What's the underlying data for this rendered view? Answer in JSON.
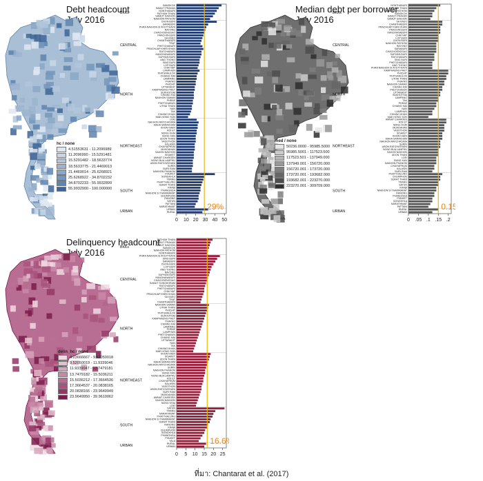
{
  "source_caption": "ที่มา: Chantarat et al. (2017)",
  "panels": [
    {
      "id": "debt",
      "title_line1": "Debt headcount",
      "title_line2": "July 2016",
      "legend_title": "hc / none",
      "legend_colors": [
        "#dfe8f1",
        "#c8d7e6",
        "#b2c6da",
        "#9cb4cf",
        "#8aa7c6",
        "#7597bb",
        "#5f84ad",
        "#3e6596"
      ],
      "legend_items": [
        "4.51553631 - 11.2096989",
        "11.2096990 - 15.5291481",
        "15.5291482 - 18.5633774",
        "18.5633775 - 21.4469013",
        "21.4469014 - 25.6268921",
        "25.6268922 - 34.8702232",
        "34.8702233 - 55.9932899",
        "55.9932900 - 100.000000"
      ],
      "annotation": "29%",
      "annotation_color": "#e58a1f",
      "bar_color": "#1f3b73",
      "ref_line_color": "#f0b400",
      "map_base_color": "#a9bfd6"
    },
    {
      "id": "median",
      "title_line1": "Median debt per borrower",
      "title_line2": "July 2016",
      "legend_title": "med / none",
      "legend_colors": [
        "#e6e6e6",
        "#cccccc",
        "#b3b3b3",
        "#999999",
        "#7f7f7f",
        "#666666",
        "#4d4d4d",
        "#2e2e2e"
      ],
      "legend_items": [
        "50236.0000 - 95985.5000",
        "95985.5001 - 117523.500",
        "117523.501 - 137949.000",
        "137949.001 - 156720.000",
        "156720.001 - 173720.000",
        "173720.001 - 193682.000",
        "193682.001 - 223270.000",
        "223270.001 - 309709.000"
      ],
      "annotation": "0.15",
      "annotation_color": "#e58a1f",
      "bar_color": "#555555",
      "ref_line_color": "#f0b400",
      "map_base_color": "#6f6f6f"
    },
    {
      "id": "delin",
      "title_line1": "Delinquency headcount",
      "title_line2": "July 2016",
      "legend_title": "delin_hc / none",
      "legend_colors": [
        "#f1d9e3",
        "#e4bfd0",
        "#d6a4bc",
        "#c889a8",
        "#b86e92",
        "#a8537d",
        "#933865",
        "#7a1c4b"
      ],
      "legend_items": [
        "4.23666667 - 9.52050018",
        "9.52050019 - 11.9339046",
        "11.9339047 - 13.7479181",
        "13.7479182 - 15.5036211",
        "15.5036212 - 17.3664536",
        "17.3664537 - 20.0838165",
        "20.0838166 - 23.9649949",
        "23.9649950 - 39.9610062"
      ],
      "annotation": "16.6%",
      "annotation_color": "#e58a1f",
      "bar_color": "#9b1b3a",
      "ref_line_color": "#f0b400",
      "map_base_color": "#b86e92"
    }
  ],
  "chart_data": [
    {
      "type": "bar",
      "orientation": "horizontal",
      "panel": "debt",
      "title": "Debt headcount",
      "subtitle": "July 2016",
      "groups": [
        "BKKs",
        "CENTRAL",
        "NORTH",
        "NORTHEAST",
        "SOUTH",
        "URBAN"
      ],
      "group_sizes": [
        6,
        18,
        18,
        20,
        13,
        2
      ],
      "categories": [
        "BANGKOK",
        "SAMUT PRAKAN",
        "NONTHABURI",
        "PATHUM THANI",
        "SAMUT SAKHON",
        "NAKHON PATHOM",
        "CHON BURI",
        "SARABURI",
        "PHRA NAKHON SI AYUTTHAYA",
        "RAYONG",
        "CHACHOENGSAO",
        "PRACHIN BURI",
        "SA KAEO",
        "CHANTHABURI",
        "TRAT",
        "PHETCHABURI",
        "PRACHUAP KHIRI KHAN",
        "RATCHABURI",
        "KANCHANABURI",
        "SUPHAN BURI",
        "ANG THONG",
        "SING BURI",
        "LOP BURI",
        "CHAI NAT",
        "LAMPHUN",
        "PHITSANULOK",
        "CHIANG MAI",
        "LAMPANG",
        "PHAYAO",
        "PHICHIT",
        "UTTARADIT",
        "KAMPHAENG PHET",
        "SUKHOTHAI",
        "CHIANG RAI",
        "NAKHON SAWAN",
        "PHRAE",
        "PHETCHABUN",
        "UTHAI THANI",
        "NAN",
        "TAK",
        "CHIANG KHAN",
        "MAE HONG SON",
        "LOEI",
        "NAKHON RATCHASIMA",
        "MAHA SARAKHAM",
        "KHON KAEN",
        "ROI ET",
        "NONG KHAI",
        "BUNG KAN",
        "UDON THANI",
        "YASOTHON",
        "KALASIN",
        "CHAIYAPHUM",
        "MUKDAHAN",
        "SAKON NAKHON",
        "SISAKET",
        "AMNAT CHAROEN",
        "NONG BUA LAMPHU",
        "UBON RATCHATHANI",
        "SURIN",
        "BURI RAM",
        "NAKHON PHANOM",
        "PHUKET",
        "SONGKHLA",
        "TRANG",
        "PHATTHALUNG",
        "SURAT THANI",
        "KRABI",
        "PHANGNGA",
        "NAKHON SI THAMMARAT",
        "CHUMPHON",
        "RANONG",
        "SATUN",
        "PATTANI",
        "NARATHIWAT",
        "URBAN",
        "RURAL"
      ],
      "values": [
        47,
        44,
        42,
        40,
        38,
        35,
        42,
        33,
        31,
        30,
        29,
        28,
        27,
        26,
        25,
        27,
        28,
        26,
        26,
        25,
        24,
        24,
        23,
        22,
        24,
        22,
        21,
        21,
        20,
        20,
        19,
        19,
        18,
        18,
        18,
        17,
        17,
        16,
        16,
        15,
        14,
        12,
        21,
        23,
        22,
        22,
        21,
        21,
        20,
        20,
        20,
        19,
        19,
        19,
        18,
        18,
        18,
        17,
        17,
        17,
        16,
        16,
        40,
        29,
        28,
        27,
        26,
        25,
        25,
        24,
        23,
        23,
        22,
        20,
        19,
        33,
        27
      ],
      "x_ticks": [
        0,
        10,
        20,
        30,
        40,
        50
      ],
      "xlim": [
        0,
        52
      ],
      "reference_line": 29
    },
    {
      "type": "bar",
      "orientation": "horizontal",
      "panel": "median",
      "title": "Median debt per borrower",
      "subtitle": "July 2016",
      "groups": [
        "BKKs",
        "CENTRAL",
        "NORTH",
        "NORTHEAST",
        "SOUTH",
        "URBAN"
      ],
      "group_sizes": [
        6,
        18,
        18,
        20,
        13,
        2
      ],
      "categories": [
        "NONTHABURI",
        "PATHUM THANI",
        "NAKHON PATHOM",
        "BANGKOK",
        "SAMUT PRAKAN",
        "SAMUT SAKHON",
        "SA KAEO",
        "CHANTHABURI",
        "PRACHUAP KHIRI KHAN",
        "PRACHIN BURI",
        "KANCHANABURI",
        "CHAI NAT",
        "LOP BURI",
        "CHON BURI",
        "NAKHON PATHOM",
        "RAYONG",
        "SARABURI",
        "CHACHOENGSAO",
        "SUPHAN BURI",
        "RATCHABURI",
        "SING BURI",
        "PHETCHABURI",
        "ANG THONG",
        "PHRA NAKHON SI AYUTTHAYA",
        "KAMPHAENG PHET",
        "PHICHIT",
        "PHITSANULOK",
        "UTHAI THANI",
        "PHAYAO",
        "NAKHON SAWAN",
        "CHIANG RAI",
        "PHETCHABUN",
        "UTTARADIT",
        "SUKHOTHAI",
        "LAMPANG",
        "TAK",
        "PHRAE",
        "CHIANG MAI",
        "NAN",
        "LAMPHUN",
        "CHIANG KHAN",
        "MAE HONG SON",
        "AMNAT CHAROEN",
        "ROI ET",
        "NONG KHAI",
        "MUKDAHAN",
        "YASOTHON",
        "SISAKET",
        "KHON KAEN",
        "MAHA SARAKHAM",
        "NAKHON RATCHASIMA",
        "SURIN",
        "UBON RATCHATHANI",
        "NONG BUA LAMPHU",
        "SAKON NAKHON",
        "UDON THANI",
        "LOEI",
        "BUNG KAN",
        "NAKHON PHANOM",
        "CHAIYAPHUM",
        "KALASIN",
        "BURI RAM",
        "PHATTHALUNG",
        "CHUMPHON",
        "SURAT THANI",
        "TRANG",
        "SATUN",
        "KRABI",
        "NAKHON SI THAMMARAT",
        "RANONG",
        "PHANGNGA",
        "PHUKET",
        "SONGKHLA",
        "NARATHIWAT",
        "PATTANI",
        "RURAL",
        "URBAN"
      ],
      "values": [
        0.16,
        0.14,
        0.13,
        0.12,
        0.12,
        0.11,
        0.17,
        0.17,
        0.16,
        0.16,
        0.16,
        0.15,
        0.15,
        0.15,
        0.14,
        0.14,
        0.14,
        0.14,
        0.13,
        0.13,
        0.13,
        0.12,
        0.12,
        0.12,
        0.2,
        0.2,
        0.19,
        0.19,
        0.18,
        0.18,
        0.17,
        0.17,
        0.16,
        0.16,
        0.15,
        0.15,
        0.14,
        0.14,
        0.13,
        0.12,
        0.12,
        0.1,
        0.19,
        0.19,
        0.18,
        0.18,
        0.18,
        0.17,
        0.17,
        0.17,
        0.16,
        0.16,
        0.16,
        0.15,
        0.15,
        0.15,
        0.14,
        0.14,
        0.14,
        0.13,
        0.13,
        0.12,
        0.17,
        0.16,
        0.16,
        0.15,
        0.15,
        0.14,
        0.14,
        0.13,
        0.13,
        0.12,
        0.12,
        0.11,
        0.1,
        0.15,
        0.12
      ],
      "x_ticks": [
        0,
        0.05,
        0.1,
        0.15,
        0.2
      ],
      "x_tick_labels": [
        "0",
        ".05",
        ".1",
        ".15",
        ".2"
      ],
      "xlim": [
        0,
        0.215
      ],
      "reference_line": 0.15
    },
    {
      "type": "bar",
      "orientation": "horizontal",
      "panel": "delin",
      "title": "Delinquency headcount",
      "subtitle": "July 2016",
      "groups": [
        "BKKs",
        "CENTRAL",
        "NORTH",
        "NORTHEAST",
        "SOUTH",
        "URBAN"
      ],
      "group_sizes": [
        6,
        18,
        18,
        20,
        13,
        2
      ],
      "categories": [
        "PATHUM THANI",
        "SAMUT PRAKAN",
        "SAMUT SAKHON",
        "BANGKOK",
        "NAKHON PATHOM",
        "NONTHABURI",
        "PHRA NAKHON SI AYUTTHAYA",
        "SING BURI",
        "SARABURI",
        "CHON BURI",
        "LOP BURI",
        "ANG THONG",
        "RAYONG",
        "SUPHAN BURI",
        "KANCHANABURI",
        "CHACHOENGSAO",
        "SAMUT SONGKHRAM",
        "RATCHABURI",
        "PHETCHABURI",
        "CHAI NAT",
        "PRACHUAP KHIRI KHAN",
        "SA KAEO",
        "TRAT",
        "CHANTHABURI",
        "NAKHON SAWAN",
        "UTHAI THANI",
        "PHICHIT",
        "PHITSANULOK",
        "SUKHOTHAI",
        "KAMPHAENG PHET",
        "PHAYAO",
        "CHIANG RAI",
        "LAMPANG",
        "PHRAE",
        "LAMPHUN",
        "PHETCHABUN",
        "CHIANG MAI",
        "UTTARADIT",
        "NAN",
        "TAK",
        "CHIANG KHAN",
        "MAE HONG SON",
        "KHON KAEN",
        "SISAKET",
        "UDON THANI",
        "MAHA SARAKHAM",
        "NAKHON RATCHASIMA",
        "SURIN",
        "NAKHON PHANOM",
        "BUNG KAN",
        "NONG BUA LAMPHU",
        "ROI ET",
        "CHAIYAPHUM",
        "KALASIN",
        "YASOTHON",
        "UBON RATCHATHANI",
        "BURI RAM",
        "MUKDAHAN",
        "AMNAT CHAROEN",
        "SAKON NAKHON",
        "NONG KHAI",
        "LOEI",
        "SATUN",
        "TRANG",
        "NARATHIWAT",
        "PHATTHALUNG",
        "NAKHON SI THAMMARAT",
        "SURAT THANI",
        "RANONG",
        "KRABI",
        "CHUMPHON",
        "SONGKHLA",
        "PHANGNGA",
        "PHUKET",
        "YALA",
        "RURAL",
        "URBAN"
      ],
      "values": [
        19.5,
        18.5,
        18.0,
        17.5,
        17.0,
        16.5,
        23.5,
        22.0,
        21.0,
        20.0,
        19.0,
        18.5,
        18.0,
        17.5,
        17.0,
        16.5,
        16.0,
        15.5,
        15.0,
        15.0,
        14.5,
        14.0,
        13.5,
        13.0,
        17.5,
        17.0,
        16.5,
        16.0,
        15.5,
        15.0,
        14.5,
        14.0,
        13.5,
        13.0,
        12.5,
        12.0,
        11.5,
        11.0,
        10.5,
        10.0,
        9.5,
        9.0,
        18.5,
        18.0,
        17.5,
        17.0,
        16.5,
        16.0,
        15.5,
        15.5,
        15.0,
        14.5,
        14.5,
        14.0,
        13.5,
        13.5,
        13.0,
        12.5,
        12.0,
        11.5,
        11.0,
        10.5,
        26.0,
        21.0,
        20.0,
        19.5,
        18.5,
        18.0,
        17.0,
        16.5,
        15.5,
        15.0,
        14.0,
        13.0,
        12.0,
        16.0,
        15.0
      ],
      "x_ticks": [
        0,
        5,
        10,
        15,
        20,
        25
      ],
      "xlim": [
        0,
        27
      ],
      "reference_line": 16.6
    }
  ]
}
